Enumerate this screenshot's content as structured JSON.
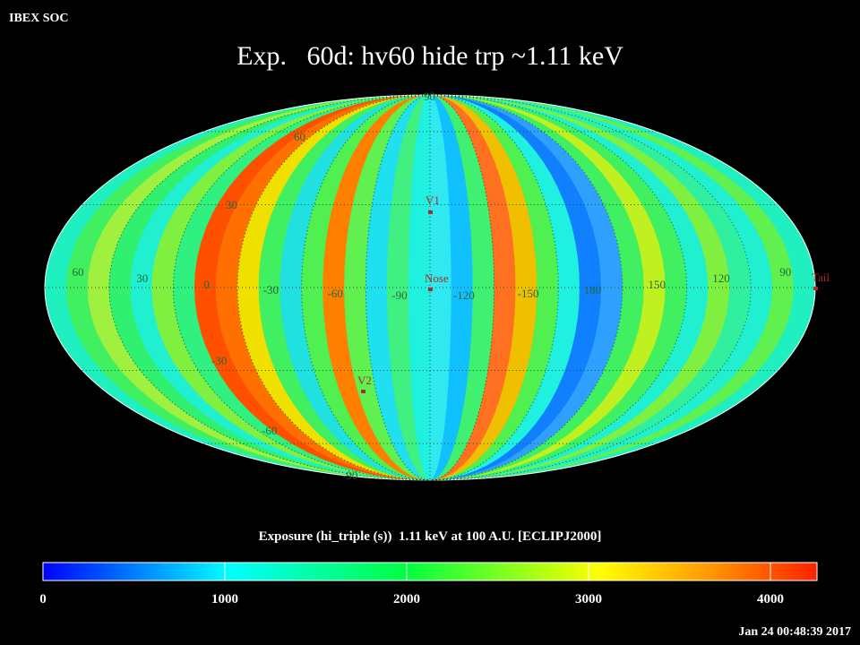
{
  "header": {
    "app": "IBEX SOC",
    "title": "Exp.   60d: hv60 hide trp ~1.11 keV",
    "timestamp": "Jan 24 00:48:39 2017"
  },
  "map": {
    "latitude_labels": [
      "90",
      "60",
      "30",
      "-30",
      "-60",
      "-90"
    ],
    "longitude_labels": [
      "60",
      "30",
      "0",
      "-30",
      "-60",
      "-90",
      "-120",
      "-150",
      "180",
      "150",
      "120",
      "90"
    ],
    "markers": [
      "V1",
      "Nose",
      "V2",
      "Tail"
    ]
  },
  "colorbar": {
    "caption": "Exposure (hi_triple (s))  1.11 keV at 100 A.U. [ECLIPJ2000]",
    "range": [
      0,
      4256
    ],
    "ticks": [
      0,
      1000,
      2000,
      3000,
      4000
    ]
  }
}
